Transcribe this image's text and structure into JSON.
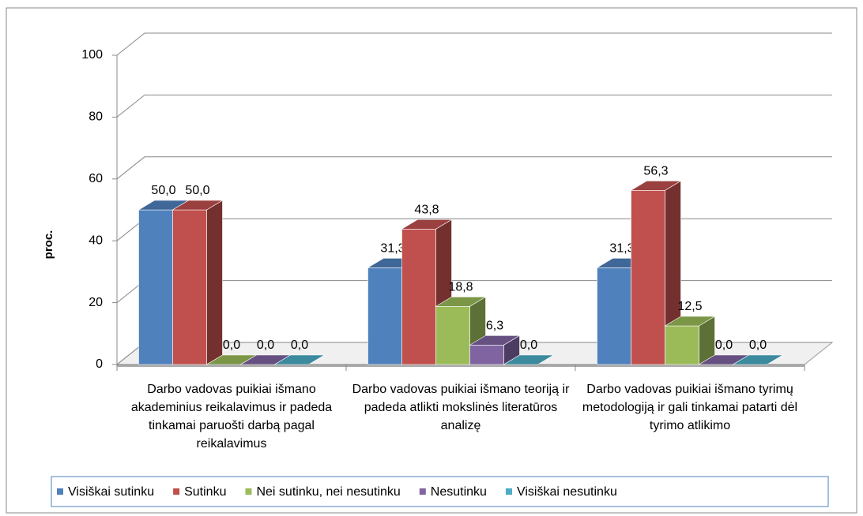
{
  "chart_data": {
    "type": "bar3d",
    "ylabel": "proc.",
    "categories": [
      "Darbo vadovas puikiai išmano akademinius reikalavimus ir padeda tinkamai paruošti darbą pagal reikalavimus",
      "Darbo vadovas puikiai išmano teoriją ir padeda atlikti mokslinės literatūros analizę",
      "Darbo vadovas puikiai išmano tyrimų metodologiją ir gali tinkamai patarti dėl tyrimo atlikimo"
    ],
    "series": [
      {
        "name": "Visiškai sutinku",
        "color": "#4f81bd",
        "values": [
          50.0,
          31.3,
          31.3
        ],
        "value_labels": [
          "50,0",
          "31,3",
          "31,3"
        ]
      },
      {
        "name": "Sutinku",
        "color": "#c0504d",
        "values": [
          50.0,
          43.8,
          56.3
        ],
        "value_labels": [
          "50,0",
          "43,8",
          "56,3"
        ]
      },
      {
        "name": "Nei sutinku, nei nesutinku",
        "color": "#9bbb59",
        "values": [
          0.0,
          18.8,
          12.5
        ],
        "value_labels": [
          "0,0",
          "18,8",
          "12,5"
        ]
      },
      {
        "name": "Nesutinku",
        "color": "#8064a2",
        "values": [
          0.0,
          6.3,
          0.0
        ],
        "value_labels": [
          "0,0",
          "6,3",
          "0,0"
        ]
      },
      {
        "name": "Visiškai nesutinku",
        "color": "#4bacc6",
        "values": [
          0.0,
          0.0,
          0.0
        ],
        "value_labels": [
          "0,0",
          "0,0",
          "0,0"
        ]
      }
    ],
    "ylim": [
      0,
      100
    ],
    "yticks": [
      0,
      20,
      40,
      60,
      80,
      100
    ],
    "grid": true,
    "legend": "bottom"
  }
}
